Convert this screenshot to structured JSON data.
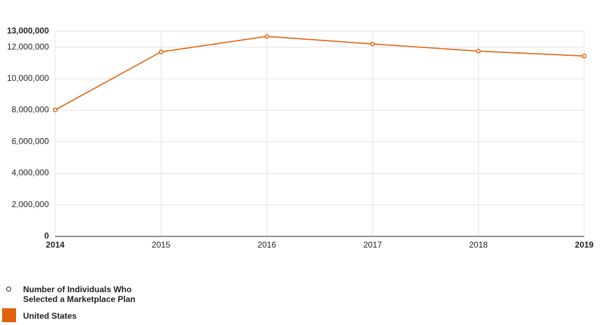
{
  "chart_data": {
    "type": "line",
    "x": [
      2014,
      2015,
      2016,
      2017,
      2018,
      2019
    ],
    "xlim": [
      2014,
      2019
    ],
    "xticks": [
      2014,
      2015,
      2016,
      2017,
      2018,
      2019
    ],
    "ylim": [
      0,
      13000000
    ],
    "yticks": [
      0,
      {
        "value": 2000000,
        "label": "2,000,000"
      },
      {
        "value": 4000000,
        "label": "4,000,000"
      },
      {
        "value": 6000000,
        "label": "6,000,000"
      },
      {
        "value": 8000000,
        "label": "8,000,000"
      },
      {
        "value": 10000000,
        "label": "10,000,000"
      },
      {
        "value": 12000000,
        "label": "12,000,000"
      },
      {
        "value": 13000000,
        "label": "13,000,000"
      }
    ],
    "grid": true,
    "measure": "Number of Individuals Who Selected a Marketplace Plan",
    "series": [
      {
        "name": "United States",
        "color": "#e0620d",
        "values": [
          8020000,
          11700000,
          12680000,
          12200000,
          11750000,
          11440000
        ]
      }
    ]
  }
}
